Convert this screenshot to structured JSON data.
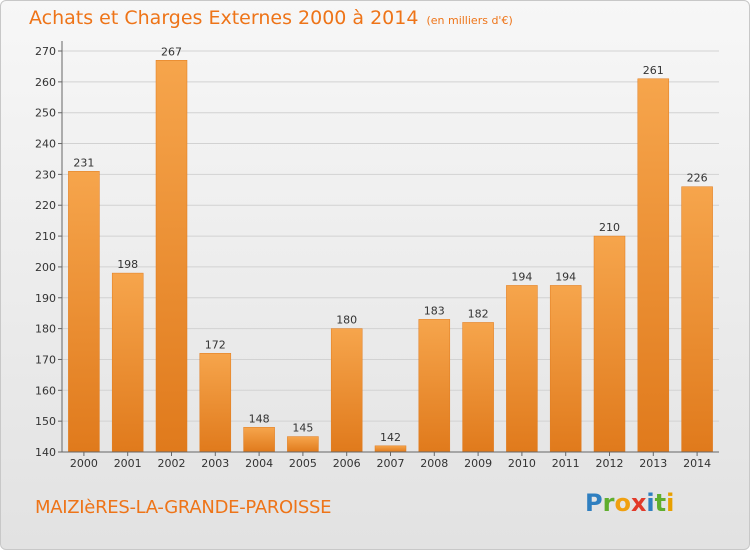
{
  "header": {
    "title": "Achats et Charges Externes 2000 à 2014",
    "subtitle": "(en milliers d'€)"
  },
  "footer": {
    "town": "MAIZIèRES-LA-GRANDE-PAROISSE",
    "logo_letters": [
      "P",
      "r",
      "o",
      "x",
      "i",
      "t",
      "i"
    ],
    "logo_colors": [
      "#2f7fc0",
      "#5fae2e",
      "#f0a010",
      "#e23a2a",
      "#2f7fc0",
      "#5fae2e",
      "#e8a000"
    ]
  },
  "colors": {
    "bar_light": "#f6a54c",
    "bar_dark": "#e07a1c",
    "axis_text": "#333333",
    "title": "#ee7418"
  },
  "chart_data": {
    "type": "bar",
    "title": "Achats et Charges Externes 2000 à 2014",
    "subtitle": "(en milliers d'€)",
    "categories": [
      "2000",
      "2001",
      "2002",
      "2003",
      "2004",
      "2005",
      "2006",
      "2007",
      "2008",
      "2009",
      "2010",
      "2011",
      "2012",
      "2013",
      "2014"
    ],
    "values": [
      231,
      198,
      267,
      172,
      148,
      145,
      180,
      142,
      183,
      182,
      194,
      194,
      210,
      261,
      226
    ],
    "ylim": [
      140,
      270
    ],
    "yticks": [
      140,
      150,
      160,
      170,
      180,
      190,
      200,
      210,
      220,
      230,
      240,
      250,
      260,
      270
    ],
    "grid": true
  }
}
